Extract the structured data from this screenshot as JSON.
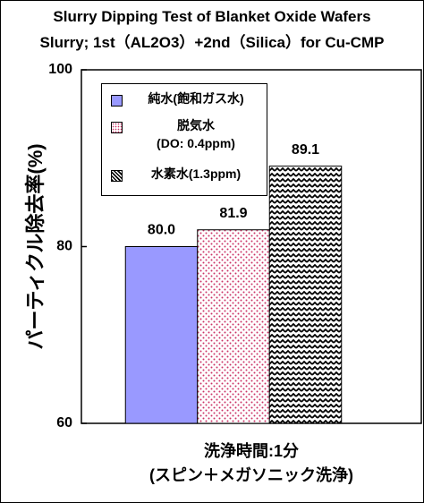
{
  "chart_data": {
    "type": "bar",
    "title": "Slurry Dipping Test of Blanket Oxide Wafers",
    "subtitle": "Slurry; 1st（AL2O3）+2nd（Silica）for Cu-CMP",
    "ylabel": "パーティクル除去率(%)",
    "xlabel": "洗浄時間:1分\n(スピン＋メガソニック洗浄)",
    "categories": [
      null
    ],
    "series": [
      {
        "name": "純水(飽和ガス水)",
        "color": "#9999ff",
        "values": [
          80
        ],
        "value_labels": [
          "80.0"
        ]
      },
      {
        "name": "脱気水\n(DO: 0.4ppm)",
        "color": "#cc3366",
        "values": [
          81.9
        ],
        "value_labels": [
          "81.9"
        ]
      },
      {
        "name": "水素水(1.3ppm)",
        "color": "#000000",
        "values": [
          89.1
        ],
        "value_labels": [
          "89.1"
        ]
      }
    ],
    "ylim": [
      60,
      100
    ],
    "yticks": [
      60,
      80,
      100
    ],
    "grid": false,
    "legend": "upper left"
  }
}
